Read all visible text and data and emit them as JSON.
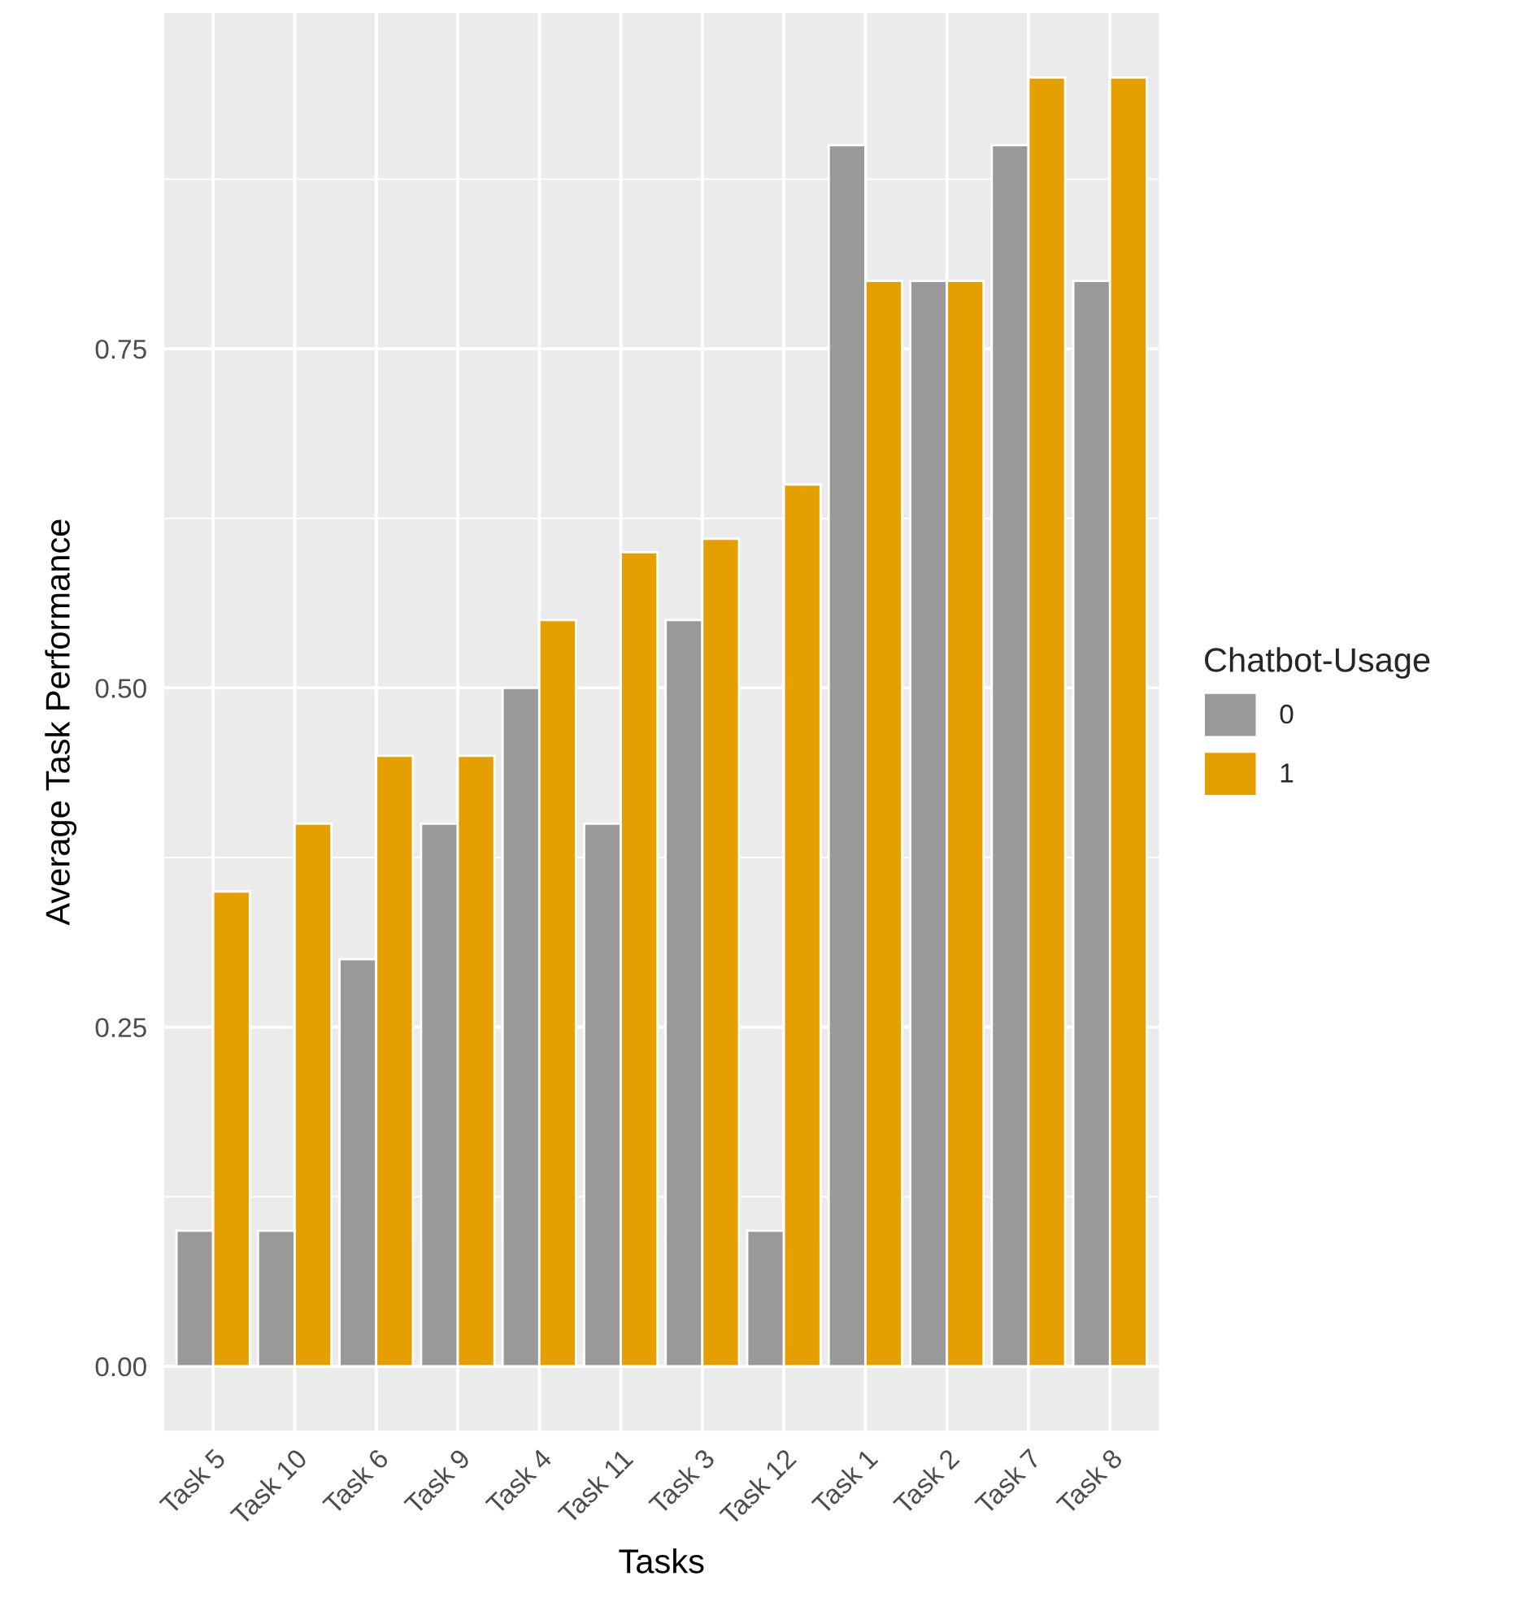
{
  "chart_data": {
    "type": "bar",
    "xlabel": "Tasks",
    "ylabel": "Average Task Performance",
    "legend_title": "Chatbot-Usage",
    "categories": [
      "Task 5",
      "Task 10",
      "Task 6",
      "Task 9",
      "Task 4",
      "Task 11",
      "Task 3",
      "Task 12",
      "Task 1",
      "Task 2",
      "Task 7",
      "Task 8"
    ],
    "series": [
      {
        "name": "0",
        "color": "#999999",
        "values": [
          0.1,
          0.1,
          0.3,
          0.4,
          0.5,
          0.4,
          0.55,
          0.1,
          0.9,
          0.8,
          0.9,
          0.8
        ]
      },
      {
        "name": "1",
        "color": "#e69f00",
        "values": [
          0.35,
          0.4,
          0.45,
          0.45,
          0.55,
          0.6,
          0.61,
          0.65,
          0.8,
          0.8,
          0.95,
          0.95
        ]
      }
    ],
    "ylim": [
      -0.0475,
      0.9975
    ],
    "yticks": [
      {
        "value": 0,
        "label": "0.00"
      },
      {
        "value": 0.25,
        "label": "0.25"
      },
      {
        "value": 0.5,
        "label": "0.50"
      },
      {
        "value": 0.75,
        "label": "0.75"
      }
    ],
    "grid": true,
    "legend": "right"
  }
}
